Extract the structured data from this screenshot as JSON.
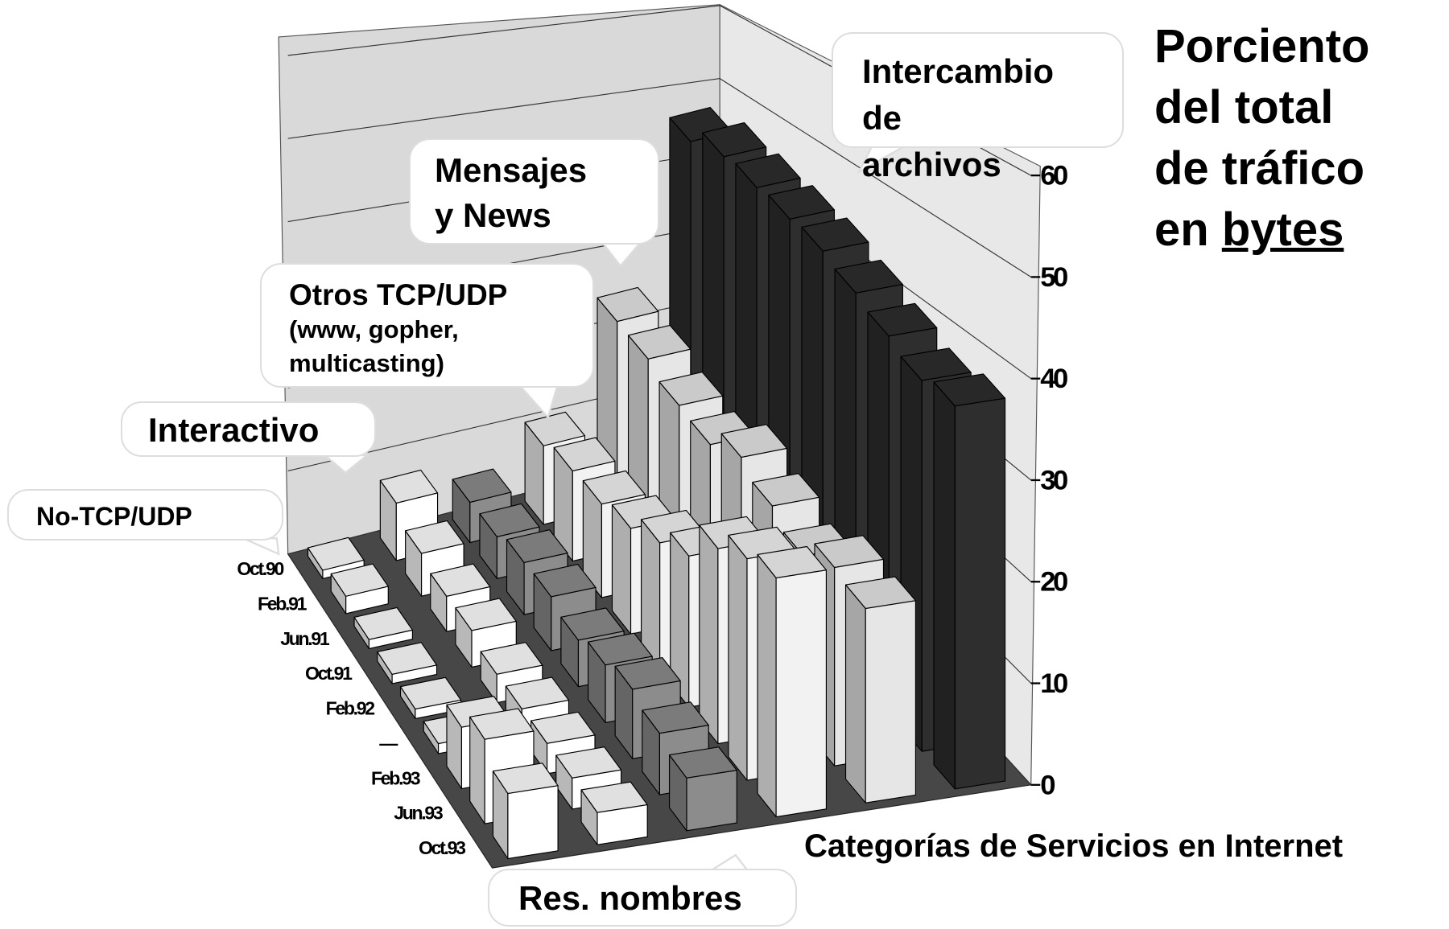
{
  "chart_data": {
    "type": "bar3d",
    "title": [
      "Porciento",
      "del total",
      "de tráfico",
      "en"
    ],
    "title_underlined": "bytes",
    "x_label": "Categorías de Servicios en Internet",
    "categories": [
      "Oct.90",
      "Feb.91",
      "Jun.91",
      "Oct.91",
      "Feb.92",
      "—",
      "Feb.93",
      "Jun.93",
      "Oct.93"
    ],
    "series": [
      {
        "name": "No-TCP/UDP",
        "color": "#ffffff",
        "values": [
          1,
          2,
          1,
          1,
          1,
          1,
          6,
          8,
          6
        ]
      },
      {
        "name": "Interactivo",
        "color": "#ffffff",
        "values": [
          7,
          5,
          4,
          4,
          3,
          3,
          3,
          3,
          3
        ]
      },
      {
        "name": "Res. nombres",
        "color": "#8c8c8c",
        "values": [
          5,
          5,
          6,
          6,
          5,
          6,
          7,
          6,
          5
        ]
      },
      {
        "name": "Otros TCP/UDP",
        "color": "#f2f2f2",
        "values": [
          10,
          11,
          11,
          12,
          14,
          16,
          20,
          22,
          23
        ]
      },
      {
        "name": "Mensajes y News",
        "color": "#e6e6e6",
        "values": [
          24,
          23,
          21,
          20,
          22,
          20,
          18,
          20,
          19
        ]
      },
      {
        "name": "Intercambio de archivos",
        "color": "#2e2e2e",
        "values": [
          46,
          47,
          46,
          45,
          44,
          42,
          40,
          38,
          38
        ]
      }
    ],
    "annotations": [
      "(www, gopher, multicasting)"
    ],
    "ylim": [
      0,
      60
    ],
    "yticks": [
      0,
      10,
      20,
      30,
      40,
      50,
      60
    ],
    "grid": true
  }
}
